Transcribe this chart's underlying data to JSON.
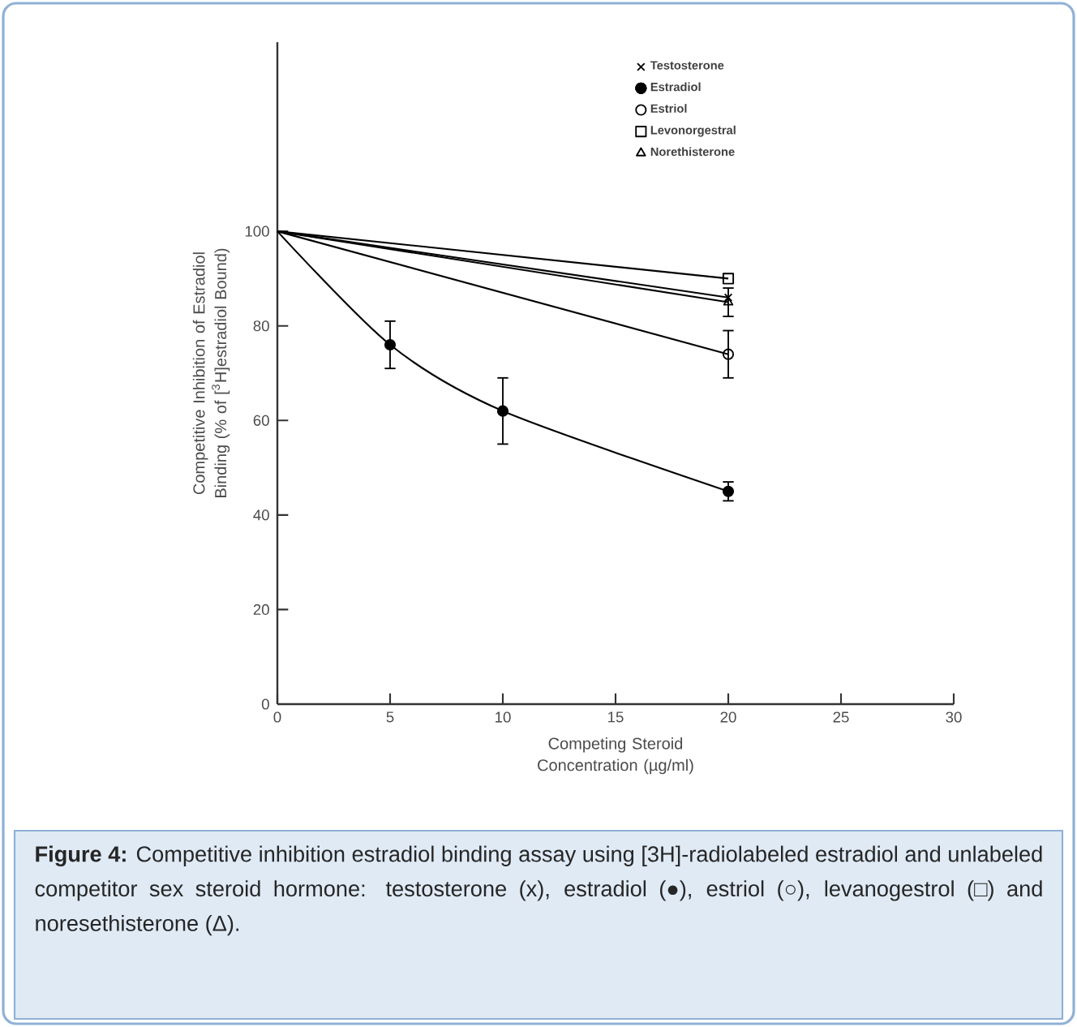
{
  "chart_data": {
    "type": "line",
    "xlabel": "Competing Steroid Concentration (µg/ml)",
    "ylabel": "Competitive Inhibition of Estradiol Binding (% of [$^{3}$H]estradiol Bound)",
    "xlim": [
      0,
      30
    ],
    "ylim": [
      0,
      140
    ],
    "xticks": [
      0,
      5,
      10,
      15,
      20,
      25,
      30
    ],
    "yticks": [
      0,
      20,
      40,
      60,
      80,
      100
    ],
    "legend": "top right",
    "grid": false,
    "line_style": "solid",
    "series": [
      {
        "name": "Testosterone",
        "color": "#000000",
        "marker": "cross",
        "x": [
          0,
          20
        ],
        "values": [
          100,
          86
        ]
      },
      {
        "name": "Estradiol",
        "color": "#000000",
        "marker": "circle",
        "x": [
          0,
          5,
          10,
          20
        ],
        "values": [
          100,
          76,
          62,
          45
        ],
        "errors": [
          null,
          5,
          7,
          2
        ]
      },
      {
        "name": "Estriol",
        "color": "#000000",
        "marker": "circle-open",
        "x": [
          0,
          20
        ],
        "values": [
          100,
          74
        ],
        "errors": [
          null,
          5
        ]
      },
      {
        "name": "Levonorgestral",
        "color": "#000000",
        "marker": "square",
        "x": [
          0,
          20
        ],
        "values": [
          100,
          90
        ]
      },
      {
        "name": "Norethisterone",
        "color": "#000000",
        "marker": "triangle",
        "x": [
          0,
          20
        ],
        "values": [
          100,
          85
        ],
        "errors": [
          null,
          3
        ]
      }
    ],
    "annotations": [
      "**Figure 4:** Competitive inhibition estradiol binding assay using [3H]-radiolabeled estradiol and unlabeled competitor sex steroid hormone: testosterone (x), estradiol (●), estriol (○), levanogestrol (□) and noresethisterone (Δ)."
    ]
  }
}
